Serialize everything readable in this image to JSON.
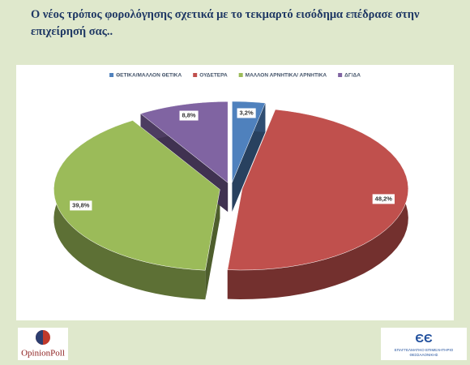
{
  "chart_data": {
    "type": "pie",
    "title": "Ο νέος τρόπος φορολόγησης σχετικά με το τεκμαρτό εισόδημα επέδρασε στην επιχείρησή σας..",
    "categories": [
      "ΘΕΤΙΚΑ/ΜΑΛΛΟΝ ΘΕΤΙΚΑ",
      "ΟΥΔΕΤΕΡΑ",
      "ΜΑΛΛΟΝ ΑΡΝΗΤΙΚΑ/ ΑΡΝΗΤΙΚΑ",
      "ΔΓ/ΔΑ"
    ],
    "values": [
      3.2,
      48.2,
      39.8,
      8.8
    ],
    "value_labels": [
      "3,2%",
      "48,2%",
      "39,8%",
      "8,8%"
    ],
    "colors": [
      "#4f81bd",
      "#c0504d",
      "#9bbb59",
      "#8064a2"
    ],
    "legend": "top"
  },
  "logos": {
    "left": "OpinionPoll",
    "right": [
      "ΕΠΑΓΓΕΛΜΑΤΙΚΟ ΕΠΙΜΕΛΗΤΗΡΙΟ",
      "ΘΕΣΣΑΛΟΝΙΚΗΣ"
    ]
  }
}
